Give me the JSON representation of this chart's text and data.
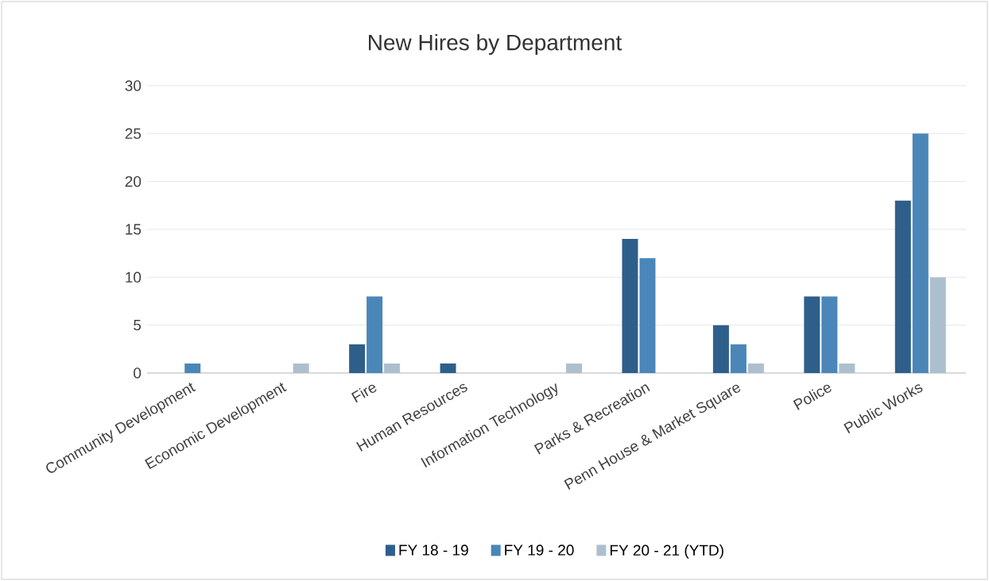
{
  "chart_data": {
    "type": "bar",
    "title": "New Hires by Department",
    "categories": [
      "Community Development",
      "Economic Development",
      "Fire",
      "Human Resources",
      "Information Technology",
      "Parks & Recreation",
      "Penn House & Market Square",
      "Police",
      "Public Works"
    ],
    "series": [
      {
        "name": "FY 18 - 19",
        "color": "#2e5f8a",
        "values": [
          0,
          0,
          3,
          1,
          0,
          14,
          5,
          8,
          18
        ]
      },
      {
        "name": "FY 19 - 20",
        "color": "#4a86b8",
        "values": [
          1,
          0,
          8,
          0,
          0,
          12,
          3,
          8,
          25
        ]
      },
      {
        "name": "FY 20 - 21 (YTD)",
        "color": "#adbfcf",
        "values": [
          0,
          1,
          1,
          0,
          1,
          0,
          1,
          1,
          10
        ]
      }
    ],
    "ylim": [
      0,
      30
    ],
    "yticks": [
      0,
      5,
      10,
      15,
      20,
      25,
      30
    ],
    "grid": "y",
    "legend": "bottom"
  }
}
